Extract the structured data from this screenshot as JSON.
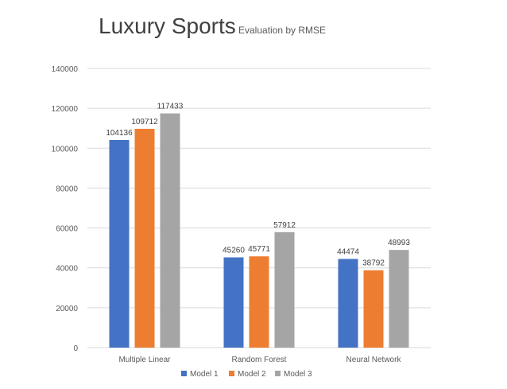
{
  "chart_data": {
    "type": "bar",
    "title": "Luxury Sports",
    "subtitle": "Evaluation by RMSE",
    "xlabel": "",
    "ylabel": "",
    "categories": [
      "Multiple Linear",
      "Random Forest",
      "Neural Network"
    ],
    "series": [
      {
        "name": "Model 1",
        "color": "#4472c4",
        "values": [
          104136,
          45260,
          44474
        ]
      },
      {
        "name": "Model 2",
        "color": "#ed7d31",
        "values": [
          109712,
          45771,
          38792
        ]
      },
      {
        "name": "Model 3",
        "color": "#a5a5a5",
        "values": [
          117433,
          57912,
          48993
        ]
      }
    ],
    "ylim": [
      0,
      140000
    ],
    "yticks": [
      "0",
      "20000",
      "40000",
      "60000",
      "80000",
      "100000",
      "120000",
      "140000"
    ],
    "grid": true,
    "legend_position": "bottom"
  }
}
